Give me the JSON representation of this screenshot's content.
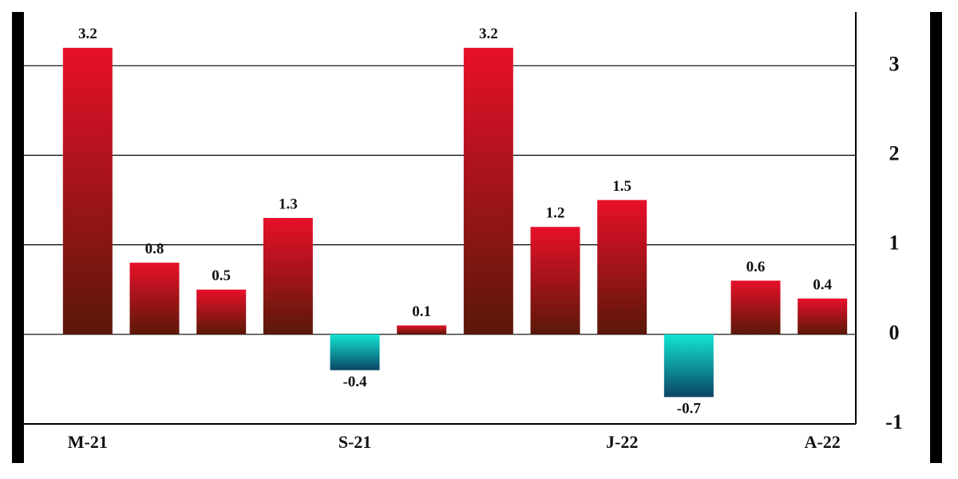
{
  "chart_data": {
    "type": "bar",
    "categories": [
      "M-21",
      null,
      null,
      null,
      "S-21",
      null,
      null,
      null,
      "J-22",
      null,
      null,
      "A-22"
    ],
    "values": [
      3.2,
      0.8,
      0.5,
      1.3,
      -0.4,
      0.1,
      3.2,
      1.2,
      1.5,
      -0.7,
      0.6,
      0.4
    ],
    "color": "#e8102a",
    "negative_color": "#12e6d2",
    "ylim": [
      -1,
      3.6
    ],
    "yticks": [
      -1,
      0,
      1,
      2,
      3
    ],
    "grid": true
  }
}
